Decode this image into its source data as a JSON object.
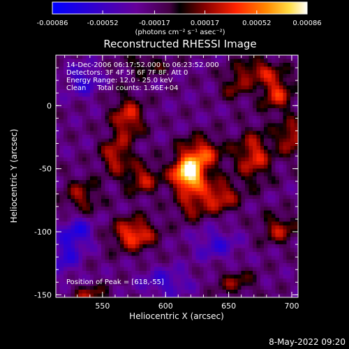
{
  "chart_data": {
    "type": "heatmap",
    "title": "Reconstructed RHESSI Image",
    "xlabel": "Heliocentric X (arcsec)",
    "ylabel": "Heliocentric Y (arcsec)",
    "xlim": [
      513,
      705
    ],
    "ylim": [
      -152,
      40
    ],
    "x_ticks": [
      550,
      600,
      650,
      700
    ],
    "y_ticks": [
      0,
      -50,
      -100,
      -150
    ],
    "colorbar": {
      "label": "(photons cm⁻² s⁻¹ asec⁻²)",
      "range": [
        -0.00086,
        0.00086
      ],
      "ticks": [
        "-0.00086",
        "-0.00052",
        "-0.00017",
        "0.00017",
        "0.00052",
        "0.00086"
      ]
    },
    "annotations": {
      "time": "14-Dec-2006 06:17:52.000 to 06:23:52.000",
      "detectors": "Detectors: 3F 4F 5F 6F 7F 8F, Att 0",
      "energy": "Energy Range: 12.0 - 25.0 keV",
      "clean": "Clean     Total counts: 1.96E+04",
      "peak": "Position of Peak = [618,-55]"
    },
    "sources": [
      {
        "x": 618,
        "y": -55,
        "sx": 9,
        "sy": 9,
        "amp": 1.0
      },
      {
        "x": 628,
        "y": -38,
        "sx": 12,
        "sy": 9,
        "amp": 0.55
      },
      {
        "x": 570,
        "y": -10,
        "sx": 9,
        "sy": 12,
        "amp": 0.5
      },
      {
        "x": 560,
        "y": -40,
        "sx": 8,
        "sy": 10,
        "amp": 0.45
      },
      {
        "x": 582,
        "y": -58,
        "sx": 10,
        "sy": 9,
        "amp": 0.42
      },
      {
        "x": 575,
        "y": -102,
        "sx": 12,
        "sy": 9,
        "amp": 0.6
      },
      {
        "x": 533,
        "y": -72,
        "sx": 10,
        "sy": 10,
        "amp": 0.35
      },
      {
        "x": 642,
        "y": -72,
        "sx": 11,
        "sy": 9,
        "amp": 0.5
      },
      {
        "x": 620,
        "y": -80,
        "sx": 9,
        "sy": 8,
        "amp": 0.35
      },
      {
        "x": 670,
        "y": -40,
        "sx": 10,
        "sy": 14,
        "amp": 0.5
      },
      {
        "x": 688,
        "y": 10,
        "sx": 9,
        "sy": 10,
        "amp": 0.5
      },
      {
        "x": 700,
        "y": -25,
        "sx": 8,
        "sy": 10,
        "amp": 0.45
      },
      {
        "x": 673,
        "y": 28,
        "sx": 12,
        "sy": 7,
        "amp": 0.4
      },
      {
        "x": 655,
        "y": 15,
        "sx": 8,
        "sy": 8,
        "amp": 0.3
      },
      {
        "x": 690,
        "y": -98,
        "sx": 10,
        "sy": 8,
        "amp": 0.4
      },
      {
        "x": 655,
        "y": -140,
        "sx": 11,
        "sy": 7,
        "amp": 0.3
      },
      {
        "x": 540,
        "y": -150,
        "sx": 10,
        "sy": 5,
        "amp": 0.35
      },
      {
        "x": 585,
        "y": 32,
        "sx": 12,
        "sy": 6,
        "amp": 0.25
      },
      {
        "x": 535,
        "y": 20,
        "sx": 9,
        "sy": 9,
        "amp": -0.35
      },
      {
        "x": 530,
        "y": -100,
        "sx": 9,
        "sy": 9,
        "amp": -0.4
      },
      {
        "x": 520,
        "y": -120,
        "sx": 8,
        "sy": 10,
        "amp": -0.35
      },
      {
        "x": 600,
        "y": -140,
        "sx": 14,
        "sy": 8,
        "amp": -0.3
      },
      {
        "x": 640,
        "y": -110,
        "sx": 12,
        "sy": 9,
        "amp": -0.3
      }
    ]
  },
  "footer": {
    "timestamp": "8-May-2022 09:20"
  }
}
